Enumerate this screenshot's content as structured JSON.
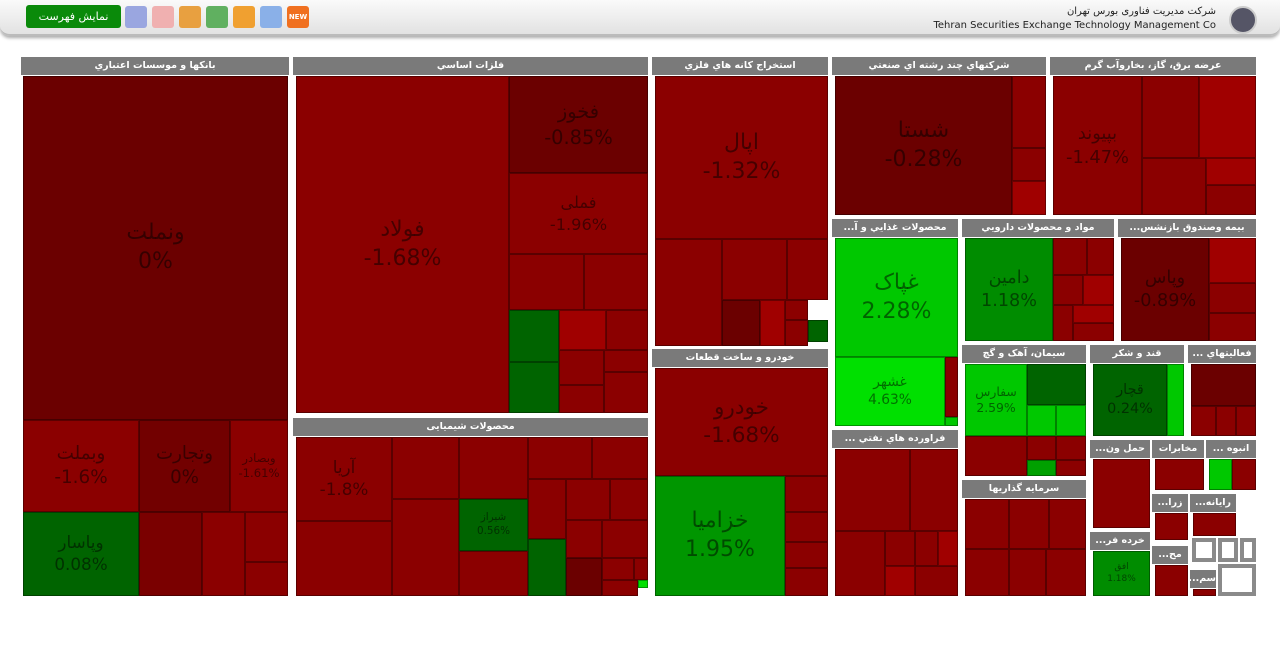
{
  "header": {
    "button": "نمایش فهرست",
    "new_badge": "NEW",
    "company_fa": "شرکت مدیریت فناوری بورس تهران",
    "company_en": "Tehran Securities Exchange Technology Management Co"
  },
  "sectors": [
    {
      "title": "بانکها و موسسات اعتباري",
      "tiles": [
        {
          "name": "ونملت",
          "change": "0%"
        },
        {
          "name": "وبملت",
          "change": "-1.6%"
        },
        {
          "name": "وتجارت",
          "change": "0%"
        },
        {
          "name": "وبصادر",
          "change": "-1.61%"
        },
        {
          "name": "وپاسار",
          "change": "0.08%"
        }
      ]
    },
    {
      "title": "فلزات اساسي",
      "tiles": [
        {
          "name": "فولاد",
          "change": "-1.68%"
        },
        {
          "name": "فخوز",
          "change": "-0.85%"
        },
        {
          "name": "فملی",
          "change": "-1.96%"
        }
      ]
    },
    {
      "title": "استخراج کانه هاي فلزي",
      "tiles": [
        {
          "name": "اپال",
          "change": "-1.32%"
        }
      ]
    },
    {
      "title": "شرکتهاي چند رشته اي صنعتي",
      "tiles": [
        {
          "name": "شستا",
          "change": "-0.28%"
        }
      ]
    },
    {
      "title": "عرضه برق، گاز، بخاروآب گرم",
      "tiles": [
        {
          "name": "بپیوند",
          "change": "-1.47%"
        }
      ]
    },
    {
      "title": "محصولات غذايي و آ...",
      "tiles": [
        {
          "name": "غپاک",
          "change": "2.28%"
        },
        {
          "name": "غشهر",
          "change": "4.63%"
        }
      ]
    },
    {
      "title": "مواد و محصولات دارويي",
      "tiles": [
        {
          "name": "دامین",
          "change": "1.18%"
        }
      ]
    },
    {
      "title": "بیمه وصندوق بازنشس...",
      "tiles": [
        {
          "name": "وپاس",
          "change": "-0.89%"
        }
      ]
    },
    {
      "title": "خودرو و ساخت قطعات",
      "tiles": [
        {
          "name": "خودرو",
          "change": "-1.68%"
        },
        {
          "name": "خزامیا",
          "change": "1.95%"
        }
      ]
    },
    {
      "title": "محصولات شیمیایی",
      "tiles": [
        {
          "name": "آریا",
          "change": "-1.8%"
        },
        {
          "name": "شیراز",
          "change": "0.56%"
        }
      ]
    },
    {
      "title": "فراورده هاي نفتي ..."
    },
    {
      "title": "سیمان، آهک و گچ",
      "tiles": [
        {
          "name": "سفارس",
          "change": "2.59%"
        }
      ]
    },
    {
      "title": "قند و شکر",
      "tiles": [
        {
          "name": "قچار",
          "change": "0.24%"
        }
      ]
    },
    {
      "title": "فعالیتهاي ..."
    },
    {
      "title": "سرمایه گذاریها"
    },
    {
      "title": "حمل ون..."
    },
    {
      "title": "مخابرات"
    },
    {
      "title": "انبوه ..."
    },
    {
      "title": "خرده فر...",
      "tiles": [
        {
          "name": "افق",
          "change": "1.18%"
        }
      ]
    },
    {
      "title": "زرا..."
    },
    {
      "title": "رایانه..."
    },
    {
      "title": "مح..."
    },
    {
      "title": "سم..."
    }
  ]
}
